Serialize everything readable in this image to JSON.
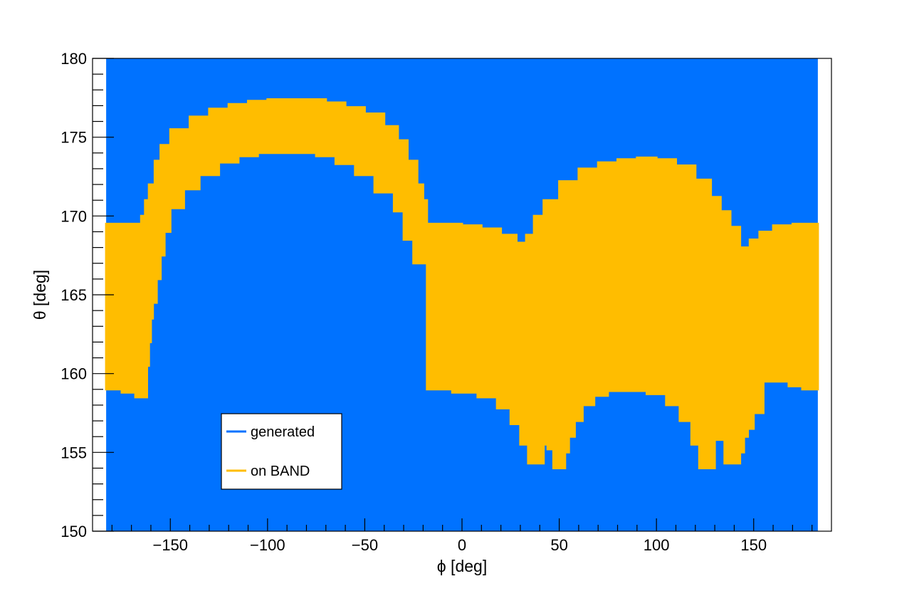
{
  "chart_data": {
    "type": "heatmap",
    "title": "",
    "xlabel": "ϕ [deg]",
    "ylabel": "θ [deg]",
    "xlim": [
      -190,
      190
    ],
    "ylim": [
      150,
      180
    ],
    "x_ticks": [
      -150,
      -100,
      -50,
      0,
      50,
      100,
      150
    ],
    "x_tick_labels": [
      "−150",
      "−100",
      "−50",
      "0",
      "50",
      "100",
      "150"
    ],
    "y_ticks": [
      150,
      155,
      160,
      165,
      170,
      175,
      180
    ],
    "y_tick_labels": [
      "150",
      "155",
      "160",
      "165",
      "170",
      "175",
      "180"
    ],
    "grid": false,
    "legend_placement": "lower-left",
    "series": [
      {
        "name": "generated",
        "color": "#0072ff",
        "x_range": [
          -183,
          183
        ],
        "y_range": [
          150,
          180
        ]
      },
      {
        "name": "on BAND",
        "color": "#ffbd00",
        "upper_boundary": [
          [
            -183,
            169.5
          ],
          [
            -170,
            169.5
          ],
          [
            -167,
            169.5
          ],
          [
            -165,
            170.0
          ],
          [
            -163,
            171.0
          ],
          [
            -161,
            172.0
          ],
          [
            -158,
            173.5
          ],
          [
            -155,
            174.5
          ],
          [
            -150,
            175.5
          ],
          [
            -140,
            176.3
          ],
          [
            -130,
            176.8
          ],
          [
            -120,
            177.1
          ],
          [
            -110,
            177.3
          ],
          [
            -100,
            177.4
          ],
          [
            -90,
            177.4
          ],
          [
            -80,
            177.4
          ],
          [
            -70,
            177.2
          ],
          [
            -60,
            176.9
          ],
          [
            -50,
            176.5
          ],
          [
            -40,
            175.7
          ],
          [
            -33,
            174.8
          ],
          [
            -28,
            173.5
          ],
          [
            -23,
            172.0
          ],
          [
            -20,
            171.0
          ],
          [
            -18,
            169.5
          ],
          [
            -16,
            169.5
          ],
          [
            -10,
            169.5
          ],
          [
            -5,
            169.5
          ],
          [
            0,
            169.4
          ],
          [
            10,
            169.2
          ],
          [
            20,
            168.8
          ],
          [
            28,
            168.3
          ],
          [
            33,
            168.8
          ],
          [
            37,
            170.0
          ],
          [
            42,
            171.0
          ],
          [
            50,
            172.2
          ],
          [
            60,
            173.0
          ],
          [
            70,
            173.4
          ],
          [
            80,
            173.6
          ],
          [
            90,
            173.7
          ],
          [
            100,
            173.6
          ],
          [
            110,
            173.2
          ],
          [
            120,
            172.3
          ],
          [
            128,
            171.2
          ],
          [
            133,
            170.3
          ],
          [
            138,
            169.3
          ],
          [
            143,
            168.0
          ],
          [
            148,
            168.5
          ],
          [
            153,
            169.0
          ],
          [
            160,
            169.4
          ],
          [
            170,
            169.5
          ],
          [
            183,
            169.5
          ]
        ],
        "lower_boundary": [
          [
            183,
            159.0
          ],
          [
            175,
            159.2
          ],
          [
            168,
            159.5
          ],
          [
            160,
            159.5
          ],
          [
            155,
            157.5
          ],
          [
            150,
            156.5
          ],
          [
            147,
            156.0
          ],
          [
            145,
            155.0
          ],
          [
            143,
            154.3
          ],
          [
            137,
            154.3
          ],
          [
            135,
            155.8
          ],
          [
            133,
            155.8
          ],
          [
            130,
            154.0
          ],
          [
            125,
            154.0
          ],
          [
            122,
            155.5
          ],
          [
            118,
            157.0
          ],
          [
            112,
            158.0
          ],
          [
            105,
            158.7
          ],
          [
            95,
            158.9
          ],
          [
            85,
            158.9
          ],
          [
            75,
            158.6
          ],
          [
            68,
            158.0
          ],
          [
            62,
            157.0
          ],
          [
            58,
            156.0
          ],
          [
            55,
            155.0
          ],
          [
            53,
            154.0
          ],
          [
            49,
            154.0
          ],
          [
            47,
            155.2
          ],
          [
            44,
            155.5
          ],
          [
            42,
            154.3
          ],
          [
            36,
            154.3
          ],
          [
            34,
            155.5
          ],
          [
            30,
            156.8
          ],
          [
            25,
            157.8
          ],
          [
            18,
            158.5
          ],
          [
            8,
            158.8
          ],
          [
            -5,
            159.0
          ],
          [
            -18,
            159.2
          ],
          [
            -18,
            167.0
          ],
          [
            -23,
            167.0
          ],
          [
            -25,
            168.5
          ],
          [
            -30,
            170.3
          ],
          [
            -35,
            171.5
          ],
          [
            -45,
            172.6
          ],
          [
            -55,
            173.3
          ],
          [
            -65,
            173.8
          ],
          [
            -75,
            174.0
          ],
          [
            -85,
            174.0
          ],
          [
            -95,
            174.0
          ],
          [
            -105,
            173.8
          ],
          [
            -115,
            173.4
          ],
          [
            -125,
            172.6
          ],
          [
            -135,
            171.7
          ],
          [
            -143,
            170.5
          ],
          [
            -150,
            169.0
          ],
          [
            -153,
            167.5
          ],
          [
            -155,
            166.0
          ],
          [
            -157,
            164.5
          ],
          [
            -159,
            163.5
          ],
          [
            -160,
            162.0
          ],
          [
            -161,
            160.5
          ],
          [
            -162,
            159.5
          ],
          [
            -162,
            158.5
          ],
          [
            -165,
            158.5
          ],
          [
            -168,
            158.8
          ],
          [
            -175,
            159.0
          ],
          [
            -183,
            159.0
          ]
        ]
      }
    ]
  }
}
